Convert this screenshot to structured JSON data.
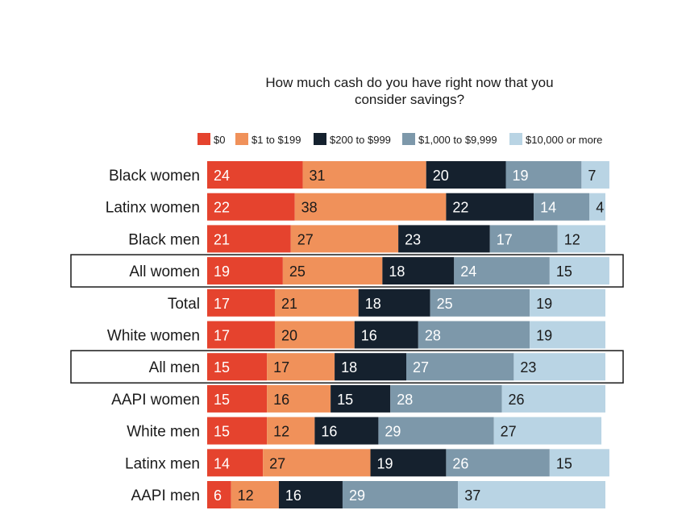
{
  "chart_data": {
    "type": "bar",
    "orientation": "horizontal",
    "stacked": true,
    "normalized": true,
    "title": "How much cash do you have right now that you consider savings?",
    "legend_position": "top",
    "grid": false,
    "categories": [
      "Black women",
      "Latinx women",
      "Black men",
      "All women",
      "Total",
      "White women",
      "All men",
      "AAPI women",
      "White men",
      "Latinx men",
      "AAPI men"
    ],
    "highlighted_categories": [
      "All women",
      "All men"
    ],
    "series": [
      {
        "name": "$0",
        "color": "#e5432e",
        "label_color": "#ffffff",
        "values": [
          24,
          22,
          21,
          19,
          17,
          17,
          15,
          15,
          15,
          14,
          6
        ]
      },
      {
        "name": "$1 to $199",
        "color": "#f0915a",
        "label_color": "#1a1a1a",
        "values": [
          31,
          38,
          27,
          25,
          21,
          20,
          17,
          16,
          12,
          27,
          12
        ]
      },
      {
        "name": "$200 to $999",
        "color": "#15212e",
        "label_color": "#ffffff",
        "values": [
          20,
          22,
          23,
          18,
          18,
          16,
          18,
          15,
          16,
          19,
          16
        ]
      },
      {
        "name": "$1,000 to $9,999",
        "color": "#7d98aa",
        "label_color": "#ffffff",
        "values": [
          19,
          14,
          17,
          24,
          25,
          28,
          27,
          28,
          29,
          26,
          29
        ]
      },
      {
        "name": "$10,000 or more",
        "color": "#b9d4e4",
        "label_color": "#1a1a1a",
        "values": [
          7,
          4,
          12,
          15,
          19,
          19,
          23,
          26,
          27,
          15,
          37
        ]
      }
    ]
  }
}
